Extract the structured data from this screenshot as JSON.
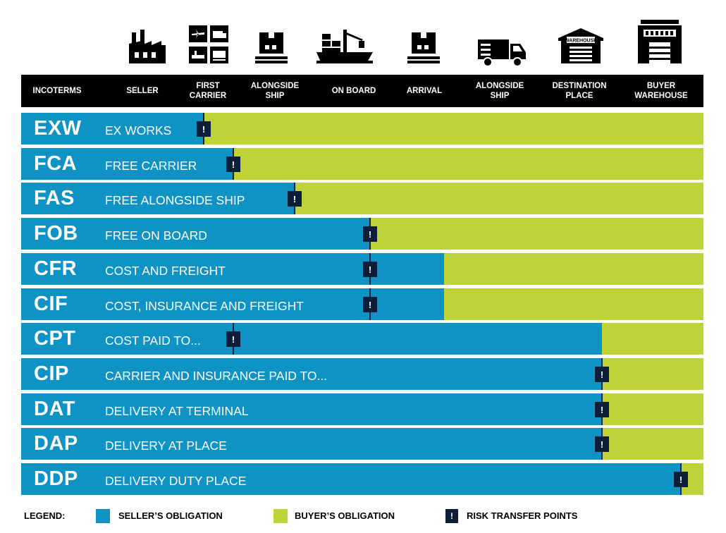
{
  "colors": {
    "seller": "#0e93c4",
    "buyer": "#bdd337",
    "risk": "#0d1e3a",
    "header_bg": "#000000"
  },
  "header": {
    "columns": [
      {
        "label": "INCOTERMS",
        "icon": null
      },
      {
        "label": "SELLER",
        "icon": "factory-icon"
      },
      {
        "label": "FIRST\nCARRIER",
        "icon": "transport-modes-icon"
      },
      {
        "label": "ALONGSIDE\nSHIP",
        "icon": "package-icon"
      },
      {
        "label": "ON BOARD",
        "icon": "cargo-ship-icon"
      },
      {
        "label": "ARRIVAL",
        "icon": "package-icon"
      },
      {
        "label": "ALONGSIDE\nSHIP",
        "icon": "delivery-truck-icon"
      },
      {
        "label": "DESTINATION\nPLACE",
        "icon": "warehouse-icon"
      },
      {
        "label": "BUYER\nWAREHOUSE",
        "icon": "building-icon"
      }
    ],
    "warehouse_sign": "WAREHOUSE"
  },
  "risk_symbol": "!",
  "terms": [
    {
      "code": "EXW",
      "name": "EX WORKS",
      "seller_to_column": 1,
      "risk_at_column": 1
    },
    {
      "code": "FCA",
      "name": "FREE CARRIER",
      "seller_to_column": 2,
      "risk_at_column": 2
    },
    {
      "code": "FAS",
      "name": "FREE ALONGSIDE SHIP",
      "seller_to_column": 3,
      "risk_at_column": 3
    },
    {
      "code": "FOB",
      "name": "FREE ON BOARD",
      "seller_to_column": 4,
      "risk_at_column": 4
    },
    {
      "code": "CFR",
      "name": "COST AND FREIGHT",
      "seller_to_column": 5,
      "risk_at_column": 4
    },
    {
      "code": "CIF",
      "name": "COST, INSURANCE AND FREIGHT",
      "seller_to_column": 5,
      "risk_at_column": 4
    },
    {
      "code": "CPT",
      "name": "COST PAID TO...",
      "seller_to_column": 7,
      "risk_at_column": 2
    },
    {
      "code": "CIP",
      "name": "CARRIER AND INSURANCE PAID TO...",
      "seller_to_column": 7,
      "risk_at_column": 7
    },
    {
      "code": "DAT",
      "name": "DELIVERY AT TERMINAL",
      "seller_to_column": 7,
      "risk_at_column": 7
    },
    {
      "code": "DAP",
      "name": "DELIVERY AT PLACE",
      "seller_to_column": 7,
      "risk_at_column": 7
    },
    {
      "code": "DDP",
      "name": "DELIVERY DUTY PLACE",
      "seller_to_column": 8,
      "risk_at_column": 8
    }
  ],
  "legend": {
    "title": "LEGEND:",
    "seller": "SELLER’S OBLIGATION",
    "buyer": "BUYER’S OBLIGATION",
    "risk": "RISK TRANSFER POINTS"
  }
}
